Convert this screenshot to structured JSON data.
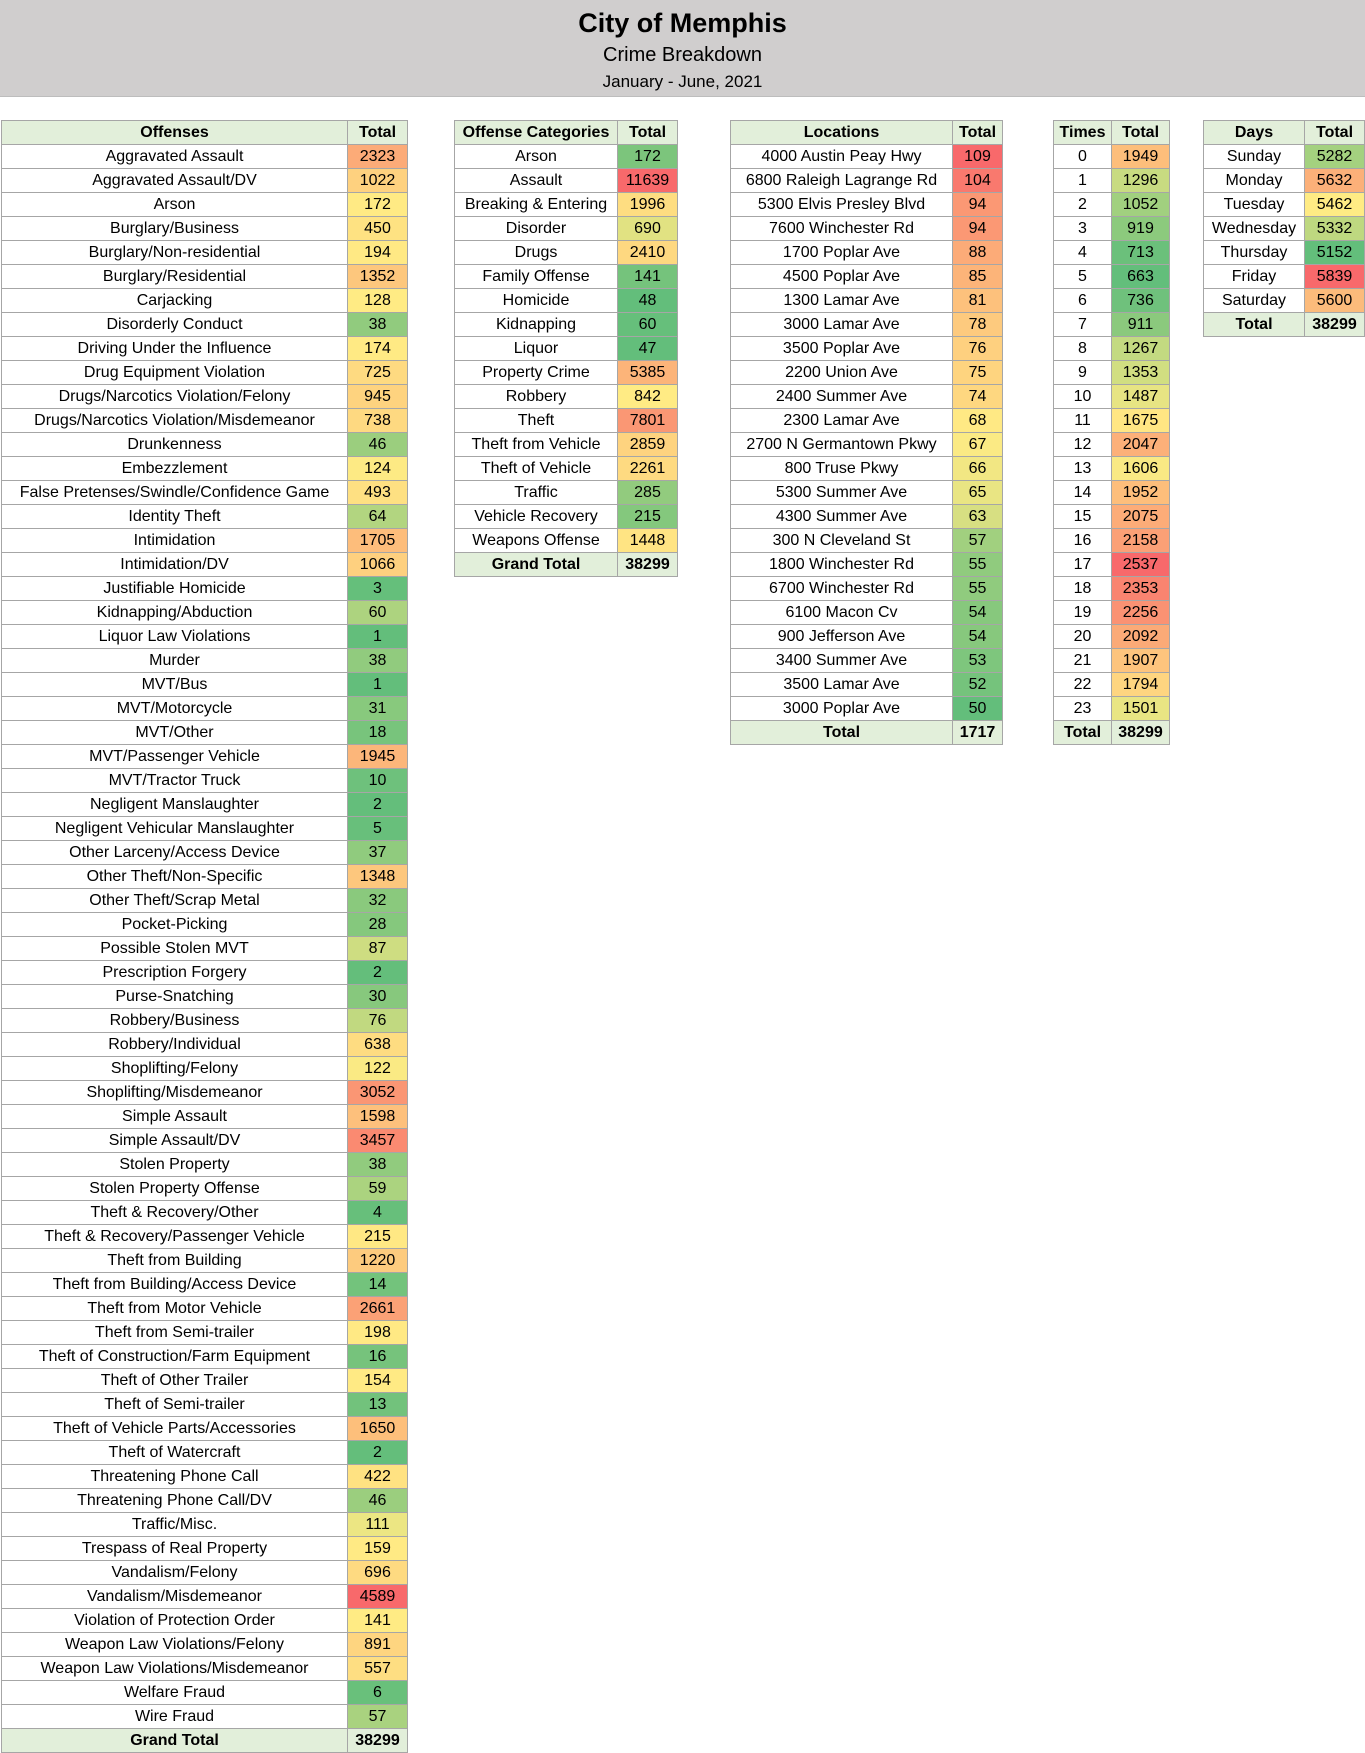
{
  "header": {
    "title": "City of Memphis",
    "subtitle": "Crime Breakdown",
    "period": "January - June, 2021"
  },
  "offenses": {
    "col_label": "Offenses",
    "col_total": "Total",
    "total_label": "Grand Total",
    "total_value": "38299",
    "rows": [
      {
        "label": "Aggravated Assault",
        "value": 2323
      },
      {
        "label": "Aggravated Assault/DV",
        "value": 1022
      },
      {
        "label": "Arson",
        "value": 172
      },
      {
        "label": "Burglary/Business",
        "value": 450
      },
      {
        "label": "Burglary/Non-residential",
        "value": 194
      },
      {
        "label": "Burglary/Residential",
        "value": 1352
      },
      {
        "label": "Carjacking",
        "value": 128
      },
      {
        "label": "Disorderly Conduct",
        "value": 38
      },
      {
        "label": "Driving Under the Influence",
        "value": 174
      },
      {
        "label": "Drug Equipment Violation",
        "value": 725
      },
      {
        "label": "Drugs/Narcotics Violation/Felony",
        "value": 945
      },
      {
        "label": "Drugs/Narcotics Violation/Misdemeanor",
        "value": 738
      },
      {
        "label": "Drunkenness",
        "value": 46
      },
      {
        "label": "Embezzlement",
        "value": 124
      },
      {
        "label": "False Pretenses/Swindle/Confidence Game",
        "value": 493
      },
      {
        "label": "Identity Theft",
        "value": 64
      },
      {
        "label": "Intimidation",
        "value": 1705
      },
      {
        "label": "Intimidation/DV",
        "value": 1066
      },
      {
        "label": "Justifiable Homicide",
        "value": 3
      },
      {
        "label": "Kidnapping/Abduction",
        "value": 60
      },
      {
        "label": "Liquor Law Violations",
        "value": 1
      },
      {
        "label": "Murder",
        "value": 38
      },
      {
        "label": "MVT/Bus",
        "value": 1
      },
      {
        "label": "MVT/Motorcycle",
        "value": 31
      },
      {
        "label": "MVT/Other",
        "value": 18
      },
      {
        "label": "MVT/Passenger Vehicle",
        "value": 1945
      },
      {
        "label": "MVT/Tractor Truck",
        "value": 10
      },
      {
        "label": "Negligent Manslaughter",
        "value": 2
      },
      {
        "label": "Negligent Vehicular Manslaughter",
        "value": 5
      },
      {
        "label": "Other Larceny/Access Device",
        "value": 37
      },
      {
        "label": "Other Theft/Non-Specific",
        "value": 1348
      },
      {
        "label": "Other Theft/Scrap Metal",
        "value": 32
      },
      {
        "label": "Pocket-Picking",
        "value": 28
      },
      {
        "label": "Possible Stolen MVT",
        "value": 87
      },
      {
        "label": "Prescription Forgery",
        "value": 2
      },
      {
        "label": "Purse-Snatching",
        "value": 30
      },
      {
        "label": "Robbery/Business",
        "value": 76
      },
      {
        "label": "Robbery/Individual",
        "value": 638
      },
      {
        "label": "Shoplifting/Felony",
        "value": 122
      },
      {
        "label": "Shoplifting/Misdemeanor",
        "value": 3052
      },
      {
        "label": "Simple Assault",
        "value": 1598
      },
      {
        "label": "Simple Assault/DV",
        "value": 3457
      },
      {
        "label": "Stolen Property",
        "value": 38
      },
      {
        "label": "Stolen Property Offense",
        "value": 59
      },
      {
        "label": "Theft & Recovery/Other",
        "value": 4
      },
      {
        "label": "Theft & Recovery/Passenger Vehicle",
        "value": 215
      },
      {
        "label": "Theft from Building",
        "value": 1220
      },
      {
        "label": "Theft from Building/Access Device",
        "value": 14
      },
      {
        "label": "Theft from Motor Vehicle",
        "value": 2661
      },
      {
        "label": "Theft from Semi-trailer",
        "value": 198
      },
      {
        "label": "Theft of Construction/Farm Equipment",
        "value": 16
      },
      {
        "label": "Theft of Other Trailer",
        "value": 154
      },
      {
        "label": "Theft of Semi-trailer",
        "value": 13
      },
      {
        "label": "Theft of Vehicle Parts/Accessories",
        "value": 1650
      },
      {
        "label": "Theft of Watercraft",
        "value": 2
      },
      {
        "label": "Threatening Phone Call",
        "value": 422
      },
      {
        "label": "Threatening Phone Call/DV",
        "value": 46
      },
      {
        "label": "Traffic/Misc.",
        "value": 111
      },
      {
        "label": "Trespass of Real Property",
        "value": 159
      },
      {
        "label": "Vandalism/Felony",
        "value": 696
      },
      {
        "label": "Vandalism/Misdemeanor",
        "value": 4589
      },
      {
        "label": "Violation of Protection Order",
        "value": 141
      },
      {
        "label": "Weapon Law Violations/Felony",
        "value": 891
      },
      {
        "label": "Weapon Law Violations/Misdemeanor",
        "value": 557
      },
      {
        "label": "Welfare Fraud",
        "value": 6
      },
      {
        "label": "Wire Fraud",
        "value": 57
      }
    ]
  },
  "categories": {
    "col_label": "Offense Categories",
    "col_total": "Total",
    "total_label": "Grand Total",
    "total_value": "38299",
    "rows": [
      {
        "label": "Arson",
        "value": 172
      },
      {
        "label": "Assault",
        "value": 11639
      },
      {
        "label": "Breaking & Entering",
        "value": 1996
      },
      {
        "label": "Disorder",
        "value": 690
      },
      {
        "label": "Drugs",
        "value": 2410
      },
      {
        "label": "Family Offense",
        "value": 141
      },
      {
        "label": "Homicide",
        "value": 48
      },
      {
        "label": "Kidnapping",
        "value": 60
      },
      {
        "label": "Liquor",
        "value": 47
      },
      {
        "label": "Property Crime",
        "value": 5385
      },
      {
        "label": "Robbery",
        "value": 842
      },
      {
        "label": "Theft",
        "value": 7801
      },
      {
        "label": "Theft from Vehicle",
        "value": 2859
      },
      {
        "label": "Theft of Vehicle",
        "value": 2261
      },
      {
        "label": "Traffic",
        "value": 285
      },
      {
        "label": "Vehicle Recovery",
        "value": 215
      },
      {
        "label": "Weapons Offense",
        "value": 1448
      }
    ]
  },
  "locations": {
    "col_label": "Locations",
    "col_total": "Total",
    "total_label": "Total",
    "total_value": "1717",
    "rows": [
      {
        "label": "4000 Austin Peay Hwy",
        "value": 109
      },
      {
        "label": "6800 Raleigh Lagrange Rd",
        "value": 104
      },
      {
        "label": "5300 Elvis Presley Blvd",
        "value": 94
      },
      {
        "label": "7600 Winchester Rd",
        "value": 94
      },
      {
        "label": "1700 Poplar Ave",
        "value": 88
      },
      {
        "label": "4500 Poplar Ave",
        "value": 85
      },
      {
        "label": "1300 Lamar Ave",
        "value": 81
      },
      {
        "label": "3000 Lamar Ave",
        "value": 78
      },
      {
        "label": "3500 Poplar Ave",
        "value": 76
      },
      {
        "label": "2200 Union Ave",
        "value": 75
      },
      {
        "label": "2400 Summer Ave",
        "value": 74
      },
      {
        "label": "2300 Lamar Ave",
        "value": 68
      },
      {
        "label": "2700 N Germantown Pkwy",
        "value": 67
      },
      {
        "label": "800 Truse Pkwy",
        "value": 66
      },
      {
        "label": "5300 Summer Ave",
        "value": 65
      },
      {
        "label": "4300 Summer Ave",
        "value": 63
      },
      {
        "label": "300 N Cleveland St",
        "value": 57
      },
      {
        "label": "1800 Winchester Rd",
        "value": 55
      },
      {
        "label": "6700 Winchester Rd",
        "value": 55
      },
      {
        "label": "6100 Macon Cv",
        "value": 54
      },
      {
        "label": "900 Jefferson Ave",
        "value": 54
      },
      {
        "label": "3400 Summer Ave",
        "value": 53
      },
      {
        "label": "3500 Lamar Ave",
        "value": 52
      },
      {
        "label": "3000 Poplar Ave",
        "value": 50
      }
    ]
  },
  "times": {
    "col_label": "Times",
    "col_total": "Total",
    "total_label": "Total",
    "total_value": "38299",
    "rows": [
      {
        "label": "0",
        "value": 1949
      },
      {
        "label": "1",
        "value": 1296
      },
      {
        "label": "2",
        "value": 1052
      },
      {
        "label": "3",
        "value": 919
      },
      {
        "label": "4",
        "value": 713
      },
      {
        "label": "5",
        "value": 663
      },
      {
        "label": "6",
        "value": 736
      },
      {
        "label": "7",
        "value": 911
      },
      {
        "label": "8",
        "value": 1267
      },
      {
        "label": "9",
        "value": 1353
      },
      {
        "label": "10",
        "value": 1487
      },
      {
        "label": "11",
        "value": 1675
      },
      {
        "label": "12",
        "value": 2047
      },
      {
        "label": "13",
        "value": 1606
      },
      {
        "label": "14",
        "value": 1952
      },
      {
        "label": "15",
        "value": 2075
      },
      {
        "label": "16",
        "value": 2158
      },
      {
        "label": "17",
        "value": 2537
      },
      {
        "label": "18",
        "value": 2353
      },
      {
        "label": "19",
        "value": 2256
      },
      {
        "label": "20",
        "value": 2092
      },
      {
        "label": "21",
        "value": 1907
      },
      {
        "label": "22",
        "value": 1794
      },
      {
        "label": "23",
        "value": 1501
      }
    ]
  },
  "days": {
    "col_label": "Days",
    "col_total": "Total",
    "total_label": "Total",
    "total_value": "38299",
    "rows": [
      {
        "label": "Sunday",
        "value": 5282
      },
      {
        "label": "Monday",
        "value": 5632
      },
      {
        "label": "Tuesday",
        "value": 5462
      },
      {
        "label": "Wednesday",
        "value": 5332
      },
      {
        "label": "Thursday",
        "value": 5152
      },
      {
        "label": "Friday",
        "value": 5839
      },
      {
        "label": "Saturday",
        "value": 5600
      }
    ]
  },
  "heatmap_colors": {
    "low": "#63be7b",
    "mid": "#ffeb84",
    "high": "#f8696b"
  }
}
